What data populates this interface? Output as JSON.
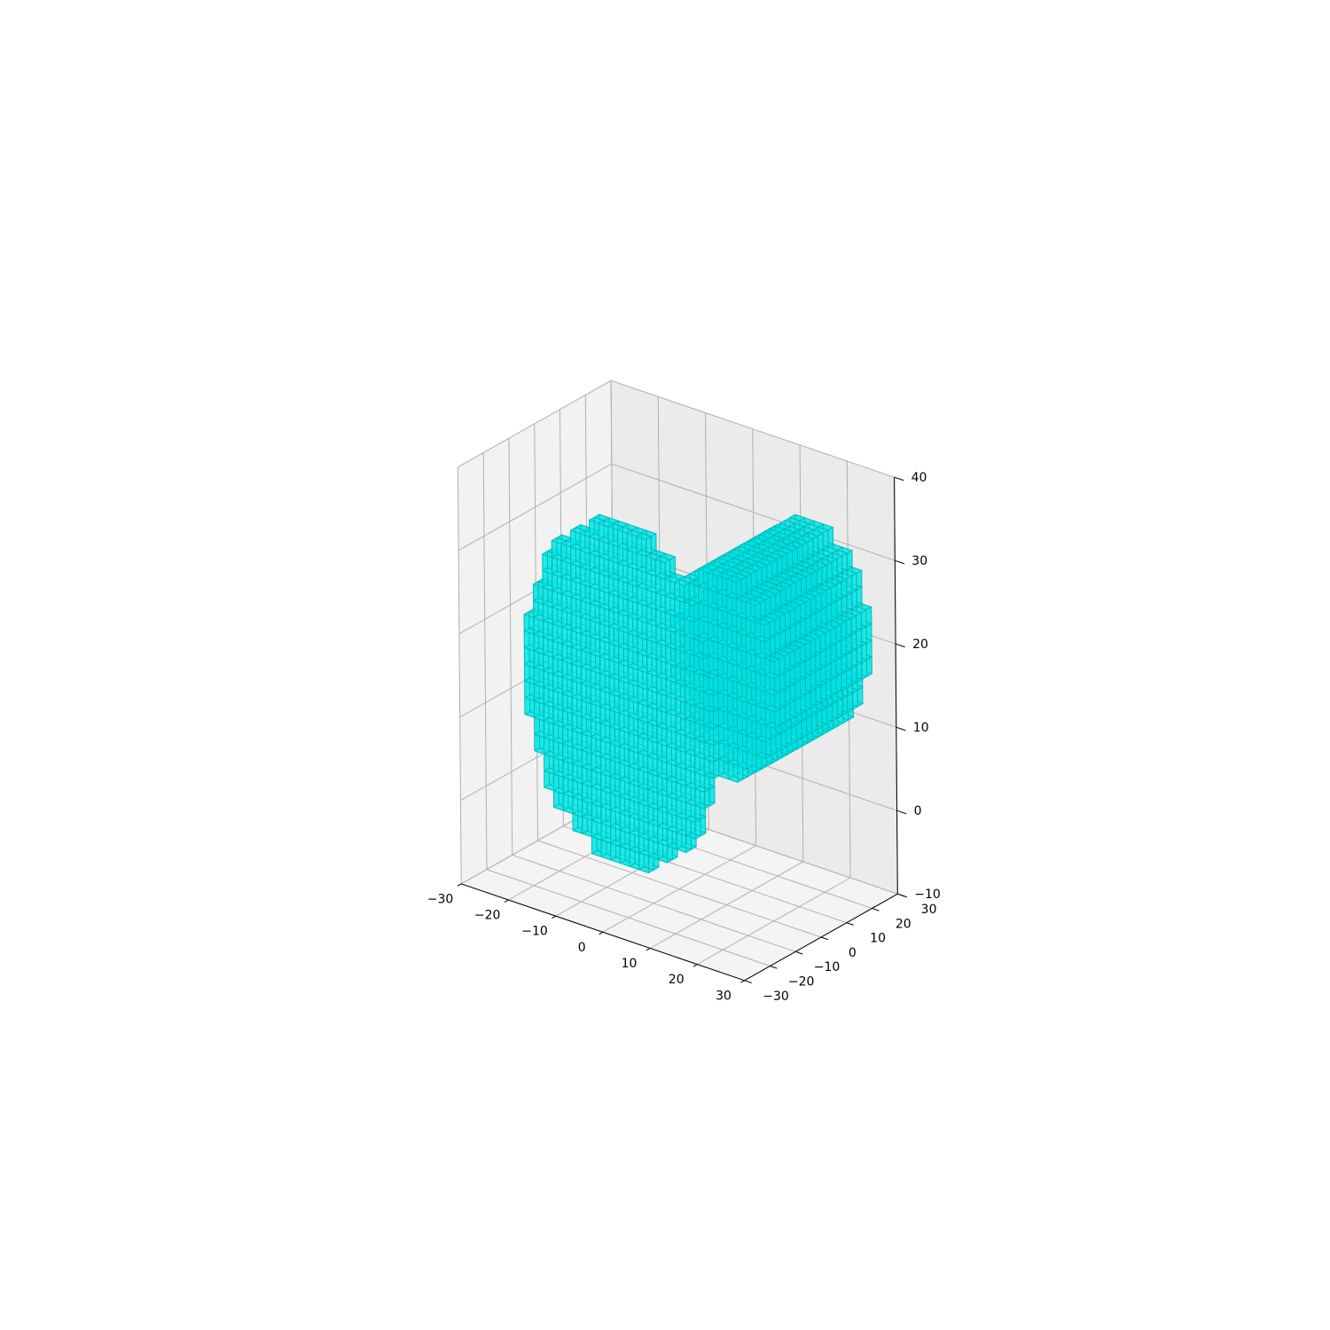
{
  "chart_data": {
    "type": "voxel",
    "title": "",
    "xlabel": "",
    "ylabel": "",
    "zlabel": "",
    "xlim": [
      -30,
      30
    ],
    "ylim": [
      -30,
      30
    ],
    "zlim": [
      -10,
      40
    ],
    "grid": true,
    "xticks": [
      -30,
      -20,
      -10,
      0,
      10,
      20,
      30
    ],
    "yticks": [
      -30,
      -20,
      -10,
      0,
      10,
      20,
      30
    ],
    "zticks": [
      -10,
      0,
      10,
      20,
      30,
      40
    ],
    "xtick_labels": [
      "−30",
      "−20",
      "−10",
      "0",
      "10",
      "20",
      "30"
    ],
    "ytick_labels": [
      "−30",
      "−20",
      "−10",
      "0",
      "10",
      "20",
      "30"
    ],
    "ztick_labels": [
      "−10",
      "0",
      "10",
      "20",
      "30",
      "40"
    ],
    "voxel_size": 2,
    "face_color": "#00e5e5",
    "edge_color": "#00bcbc",
    "shapes": [
      {
        "kind": "vertical-disk",
        "axis": "y",
        "center": [
          -6,
          -10,
          14
        ],
        "radius": 20,
        "thickness": 4
      },
      {
        "kind": "horizontal-cylinder",
        "axis": "y",
        "center_x": 14,
        "center_z": 20,
        "y_from": -10,
        "y_to": 28,
        "radius": 12
      }
    ]
  }
}
